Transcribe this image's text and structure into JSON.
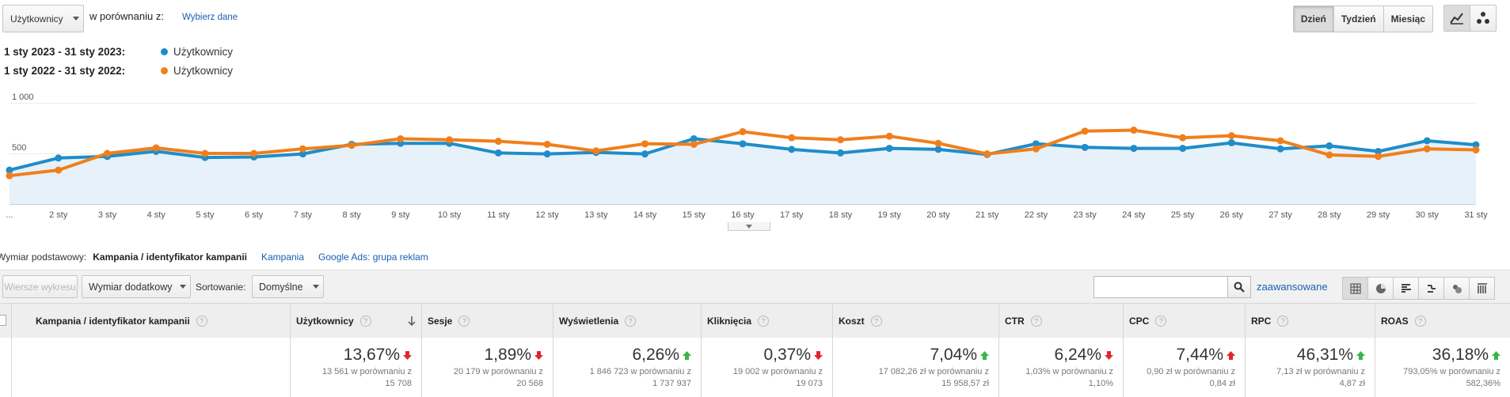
{
  "header": {
    "metric_select": "Użytkownicy",
    "compare_label": "w porównaniu z:",
    "choose_data_link": "Wybierz dane",
    "period_buttons": [
      "Dzień",
      "Tydzień",
      "Miesiąc"
    ],
    "active_period": "Dzień"
  },
  "legend": {
    "current_range": "1 sty 2023 - 31 sty 2023:",
    "previous_range": "1 sty 2022 - 31 sty 2022:",
    "current_series": "Użytkownicy",
    "previous_series": "Użytkownicy"
  },
  "chart_data": {
    "type": "line",
    "y_ticks": [
      "1 000",
      "500"
    ],
    "ylim": [
      0,
      1000
    ],
    "x_labels": [
      "...",
      "2 sty",
      "3 sty",
      "4 sty",
      "5 sty",
      "6 sty",
      "7 sty",
      "8 sty",
      "9 sty",
      "10 sty",
      "11 sty",
      "12 sty",
      "13 sty",
      "14 sty",
      "15 sty",
      "16 sty",
      "17 sty",
      "18 sty",
      "19 sty",
      "20 sty",
      "21 sty",
      "22 sty",
      "23 sty",
      "24 sty",
      "25 sty",
      "26 sty",
      "27 sty",
      "28 sty",
      "29 sty",
      "30 sty",
      "31 sty"
    ],
    "series": [
      {
        "name": "Użytkownicy",
        "period": "1 sty 2023 - 31 sty 2023",
        "color": "#1f8dc9",
        "area": true,
        "values": [
          335,
          455,
          470,
          520,
          460,
          465,
          495,
          590,
          600,
          600,
          505,
          495,
          510,
          495,
          645,
          595,
          540,
          505,
          550,
          540,
          490,
          595,
          560,
          550,
          550,
          605,
          545,
          575,
          520,
          625,
          585
        ]
      },
      {
        "name": "Użytkownicy",
        "period": "1 sty 2022 - 31 sty 2022",
        "color": "#f07f1b",
        "area": false,
        "values": [
          280,
          335,
          500,
          555,
          500,
          500,
          545,
          580,
          645,
          635,
          620,
          590,
          525,
          595,
          590,
          715,
          655,
          635,
          670,
          600,
          495,
          545,
          720,
          730,
          655,
          675,
          625,
          485,
          470,
          545,
          535
        ]
      }
    ]
  },
  "dimension_bar": {
    "label": "Wymiar podstawowy:",
    "current": "Kampania / identyfikator kampanii",
    "options": [
      "Kampania",
      "Google Ads: grupa reklam"
    ]
  },
  "toolbar": {
    "plot_rows": "Wiersze wykresu",
    "secondary_dimension": "Wymiar dodatkowy",
    "sort_label": "Sortowanie:",
    "sort_value": "Domyślne",
    "search_placeholder": "",
    "advanced_link": "zaawansowane"
  },
  "table": {
    "dimension_header": "Kampania / identyfikator kampanii",
    "columns": [
      {
        "header": "Użytkownicy",
        "pct": "13,67%",
        "trend": "down",
        "cmp1": "13 561 w porównaniu z",
        "cmp2": "15 708"
      },
      {
        "header": "Sesje",
        "pct": "1,89%",
        "trend": "down",
        "cmp1": "20 179 w porównaniu z",
        "cmp2": "20 568"
      },
      {
        "header": "Wyświetlenia",
        "pct": "6,26%",
        "trend": "up",
        "cmp1": "1 846 723 w porównaniu z",
        "cmp2": "1 737 937"
      },
      {
        "header": "Kliknięcia",
        "pct": "0,37%",
        "trend": "down",
        "cmp1": "19 002 w porównaniu z",
        "cmp2": "19 073"
      },
      {
        "header": "Koszt",
        "pct": "7,04%",
        "trend": "up",
        "cmp1": "17 082,26 zł w porównaniu z",
        "cmp2": "15 958,57 zł"
      },
      {
        "header": "CTR",
        "pct": "6,24%",
        "trend": "down",
        "cmp1": "1,03% w porównaniu z",
        "cmp2": "1,10%"
      },
      {
        "header": "CPC",
        "pct": "7,44%",
        "trend": "up-red",
        "cmp1": "0,90 zł w porównaniu z",
        "cmp2": "0,84 zł"
      },
      {
        "header": "RPC",
        "pct": "46,31%",
        "trend": "up",
        "cmp1": "7,13 zł w porównaniu z",
        "cmp2": "4,87 zł"
      },
      {
        "header": "ROAS",
        "pct": "36,18%",
        "trend": "up",
        "cmp1": "793,05% w porównaniu z",
        "cmp2": "582,36%"
      }
    ]
  },
  "colors": {
    "current": "#1f8dc9",
    "previous": "#f07f1b",
    "up": "#3ab54a",
    "down": "#e0262c"
  }
}
